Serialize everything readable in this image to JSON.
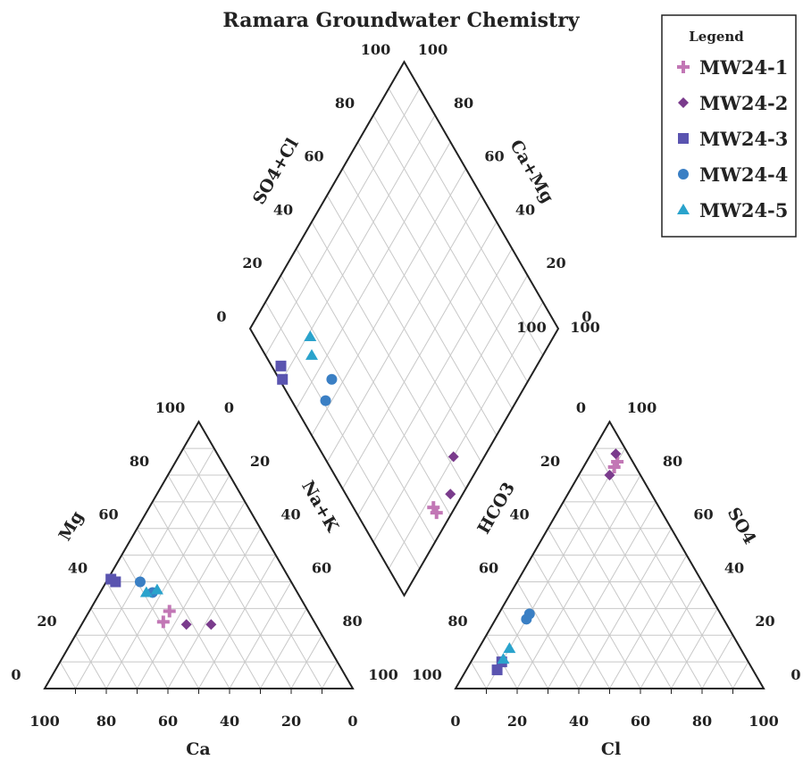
{
  "chart_data": {
    "type": "scatter",
    "title": "Ramara Groundwater Chemistry",
    "legend_title": "Legend",
    "legend_position": "top-right",
    "grid": true,
    "ticks": [
      "0",
      "20",
      "40",
      "60",
      "80",
      "100"
    ],
    "axes": {
      "cation_left": "Mg",
      "cation_right": "Na+K",
      "cation_bottom": "Ca",
      "anion_left": "HCO3",
      "anion_right": "SO4",
      "anion_bottom": "Cl",
      "diamond_left": "SO4+Cl",
      "diamond_right": "Ca+Mg"
    },
    "series": [
      {
        "name": "MW24-1",
        "marker": "plus",
        "color": "#c277b5",
        "points": [
          {
            "Ca": 45,
            "Mg": 29,
            "NaK": 26,
            "HCO3": 5,
            "SO4": 85,
            "Cl": 10
          },
          {
            "Ca": 49,
            "Mg": 25,
            "NaK": 26,
            "HCO3": 7,
            "SO4": 83,
            "Cl": 10
          }
        ]
      },
      {
        "name": "MW24-2",
        "marker": "diamond",
        "color": "#7a3b8c",
        "points": [
          {
            "Ca": 42,
            "Mg": 24,
            "NaK": 34,
            "HCO3": 4,
            "SO4": 88,
            "Cl": 8
          },
          {
            "Ca": 34,
            "Mg": 24,
            "NaK": 42,
            "HCO3": 10,
            "SO4": 80,
            "Cl": 10
          }
        ]
      },
      {
        "name": "MW24-3",
        "marker": "square",
        "color": "#5a54b0",
        "points": [
          {
            "Ca": 57,
            "Mg": 40,
            "NaK": 3,
            "HCO3": 83,
            "SO4": 7,
            "Cl": 10
          },
          {
            "Ca": 58,
            "Mg": 41,
            "NaK": 1,
            "HCO3": 80,
            "SO4": 10,
            "Cl": 10
          }
        ]
      },
      {
        "name": "MW24-4",
        "marker": "circle",
        "color": "#3a7fc4",
        "points": [
          {
            "Ca": 49,
            "Mg": 40,
            "NaK": 11,
            "HCO3": 62,
            "SO4": 28,
            "Cl": 10
          },
          {
            "Ca": 47,
            "Mg": 36,
            "NaK": 17,
            "HCO3": 64,
            "SO4": 26,
            "Cl": 10
          }
        ]
      },
      {
        "name": "MW24-5",
        "marker": "triangle",
        "color": "#2aa3cc",
        "points": [
          {
            "Ca": 49,
            "Mg": 36,
            "NaK": 15,
            "HCO3": 75,
            "SO4": 15,
            "Cl": 10
          },
          {
            "Ca": 45,
            "Mg": 37,
            "NaK": 18,
            "HCO3": 79,
            "SO4": 11,
            "Cl": 10
          }
        ]
      }
    ]
  }
}
